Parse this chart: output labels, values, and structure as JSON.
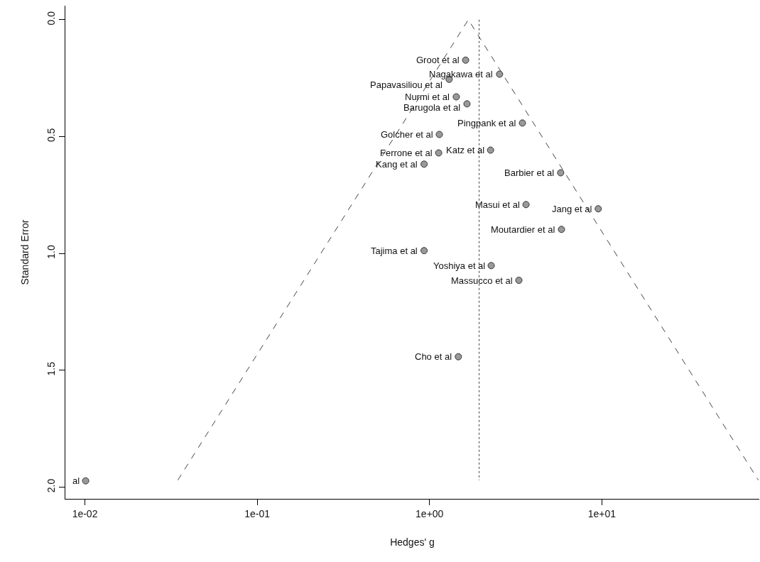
{
  "chart_data": {
    "type": "scatter",
    "xlabel": "Hedges' g",
    "ylabel": "Standard Error",
    "log": "x",
    "grid": false,
    "legend": false,
    "marker": "circle",
    "xlim": [
      0.0077,
      82
    ],
    "xticks": [
      {
        "value": 0.01,
        "label": "1e-02"
      },
      {
        "value": 0.1,
        "label": "1e-01"
      },
      {
        "value": 1,
        "label": "1e+00"
      },
      {
        "value": 10,
        "label": "1e+01"
      }
    ],
    "ylim": [
      2.05,
      -0.06
    ],
    "yticks": [
      {
        "value": 0,
        "label": "0.0"
      },
      0.5,
      {
        "value": 1,
        "label": "1.0"
      },
      1.5,
      {
        "value": 2,
        "label": "2.0"
      }
    ],
    "series": [
      {
        "type": "line",
        "line_style": "dashed",
        "marker": "none",
        "color": "#444444",
        "x": [
          0.0346,
          1.68,
          81
        ],
        "values": [
          1.97,
          0,
          1.97
        ]
      },
      {
        "type": "line",
        "line_style": "dotted",
        "marker": "none",
        "color": "#444444",
        "x": [
          1.94,
          1.94
        ],
        "values": [
          0,
          1.97
        ]
      },
      {
        "color": "#999999",
        "x": [
          1.62,
          2.55,
          1.3,
          1.43,
          1.65,
          3.46,
          1.14,
          1.13,
          2.26,
          0.93,
          5.77,
          3.63,
          9.53,
          5.83,
          0.93,
          2.28,
          3.3,
          1.47,
          0.0101
        ],
        "values": [
          0.173,
          0.233,
          0.255,
          0.33,
          0.36,
          0.442,
          0.491,
          0.57,
          0.558,
          0.618,
          0.655,
          0.791,
          0.809,
          0.897,
          0.988,
          1.052,
          1.115,
          1.442,
          1.973
        ]
      }
    ],
    "annotations": [
      {
        "text": "Groot et al",
        "x": 1.62,
        "y": 0.173
      },
      {
        "text": "Nagakawa et al",
        "x": 2.55,
        "y": 0.233
      },
      {
        "text": "Papavasiliou et al",
        "x": 1.3,
        "y": 0.255
      },
      {
        "text": "Nurmi et al",
        "x": 1.43,
        "y": 0.33
      },
      {
        "text": "Barugola et al",
        "x": 1.65,
        "y": 0.36
      },
      {
        "text": "Pingpank et al",
        "x": 3.46,
        "y": 0.442
      },
      {
        "text": "Golcher et al",
        "x": 1.14,
        "y": 0.491
      },
      {
        "text": "Ferrone et al",
        "x": 1.13,
        "y": 0.57
      },
      {
        "text": "Katz et al",
        "x": 2.26,
        "y": 0.558
      },
      {
        "text": "Kang et al",
        "x": 0.93,
        "y": 0.618
      },
      {
        "text": "Barbier et al",
        "x": 5.77,
        "y": 0.655
      },
      {
        "text": "Masui et al",
        "x": 3.63,
        "y": 0.791
      },
      {
        "text": "Jang et al",
        "x": 9.53,
        "y": 0.809
      },
      {
        "text": "Moutardier et al",
        "x": 5.83,
        "y": 0.897
      },
      {
        "text": "Tajima et al",
        "x": 0.93,
        "y": 0.988
      },
      {
        "text": "Yoshiya et al",
        "x": 2.28,
        "y": 1.052
      },
      {
        "text": "Massucco et al",
        "x": 3.3,
        "y": 1.115
      },
      {
        "text": "Cho et al",
        "x": 1.47,
        "y": 1.442
      },
      {
        "text": "al",
        "x": 0.0101,
        "y": 1.973
      }
    ]
  }
}
